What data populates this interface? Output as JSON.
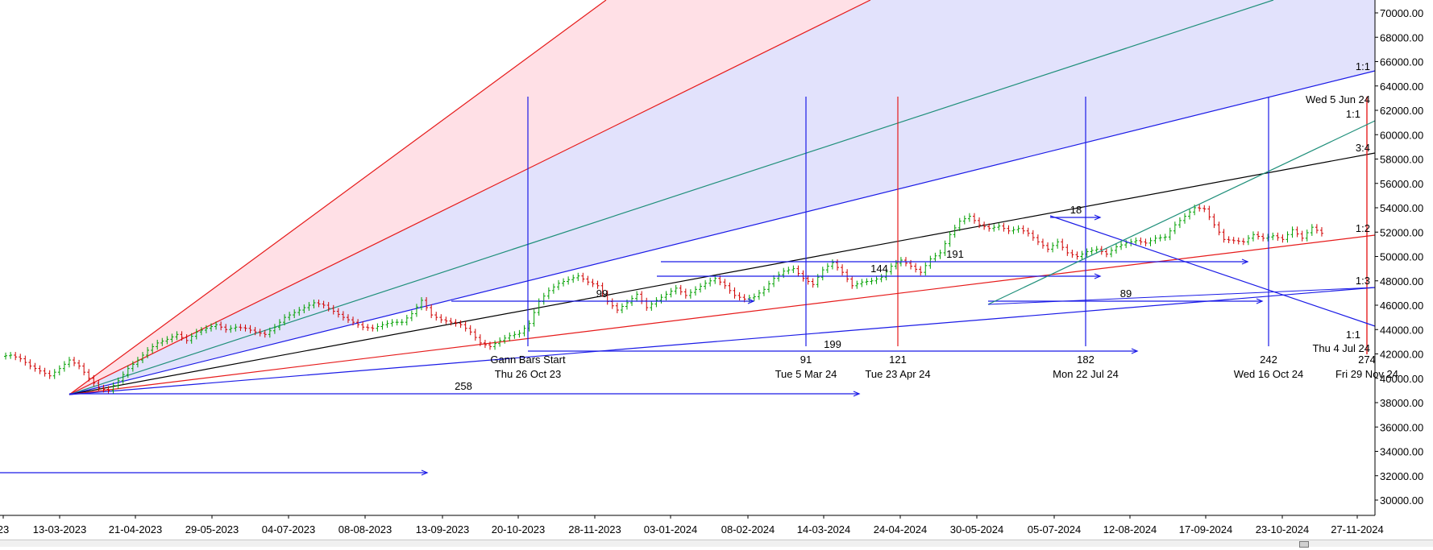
{
  "chart_data": {
    "type": "candlestick",
    "title": "",
    "xlabel": "",
    "ylabel": "",
    "ylim": [
      28500,
      71500
    ],
    "y_ticks": [
      "30000.00",
      "32000.00",
      "34000.00",
      "36000.00",
      "38000.00",
      "40000.00",
      "42000.00",
      "44000.00",
      "46000.00",
      "48000.00",
      "50000.00",
      "52000.00",
      "54000.00",
      "56000.00",
      "58000.00",
      "60000.00",
      "62000.00",
      "64000.00",
      "66000.00",
      "68000.00",
      "70000.00"
    ],
    "x_ticks": [
      "23",
      "13-03-2023",
      "21-04-2023",
      "29-05-2023",
      "04-07-2023",
      "08-08-2023",
      "13-09-2023",
      "20-10-2023",
      "28-11-2023",
      "03-01-2024",
      "08-02-2024",
      "14-03-2024",
      "24-04-2024",
      "30-05-2024",
      "05-07-2024",
      "12-08-2024",
      "17-09-2024",
      "23-10-2024",
      "27-11-2024"
    ],
    "price_path": [
      [
        0,
        41800
      ],
      [
        1,
        41900
      ],
      [
        2,
        41600
      ],
      [
        3,
        41000
      ],
      [
        4,
        40600
      ],
      [
        5,
        40200
      ],
      [
        6,
        40800
      ],
      [
        7,
        41500
      ],
      [
        8,
        41000
      ],
      [
        9,
        40000
      ],
      [
        10,
        39200
      ],
      [
        11,
        39000
      ],
      [
        12,
        39800
      ],
      [
        13,
        40800
      ],
      [
        14,
        41500
      ],
      [
        15,
        42300
      ],
      [
        16,
        42900
      ],
      [
        17,
        43200
      ],
      [
        18,
        43600
      ],
      [
        19,
        43100
      ],
      [
        20,
        43800
      ],
      [
        21,
        44100
      ],
      [
        22,
        44400
      ],
      [
        23,
        44000
      ],
      [
        24,
        44200
      ],
      [
        25,
        44100
      ],
      [
        26,
        43800
      ],
      [
        27,
        43600
      ],
      [
        28,
        44200
      ],
      [
        29,
        45000
      ],
      [
        30,
        45400
      ],
      [
        31,
        45800
      ],
      [
        32,
        46200
      ],
      [
        33,
        46000
      ],
      [
        34,
        45500
      ],
      [
        35,
        45000
      ],
      [
        36,
        44600
      ],
      [
        37,
        44200
      ],
      [
        38,
        44100
      ],
      [
        39,
        44400
      ],
      [
        40,
        44600
      ],
      [
        41,
        44600
      ],
      [
        42,
        45300
      ],
      [
        43,
        46400
      ],
      [
        44,
        45200
      ],
      [
        45,
        44800
      ],
      [
        46,
        44600
      ],
      [
        47,
        44400
      ],
      [
        48,
        43800
      ],
      [
        49,
        42900
      ],
      [
        50,
        42600
      ],
      [
        51,
        43100
      ],
      [
        52,
        43500
      ],
      [
        53,
        43700
      ],
      [
        54,
        44500
      ],
      [
        55,
        46300
      ],
      [
        56,
        47200
      ],
      [
        57,
        47800
      ],
      [
        58,
        48100
      ],
      [
        59,
        48400
      ],
      [
        60,
        47900
      ],
      [
        61,
        47600
      ],
      [
        62,
        46300
      ],
      [
        63,
        45600
      ],
      [
        64,
        46200
      ],
      [
        65,
        46900
      ],
      [
        66,
        45800
      ],
      [
        67,
        46400
      ],
      [
        68,
        46900
      ],
      [
        69,
        47400
      ],
      [
        70,
        46800
      ],
      [
        71,
        47300
      ],
      [
        72,
        47800
      ],
      [
        73,
        48200
      ],
      [
        74,
        47600
      ],
      [
        75,
        46800
      ],
      [
        76,
        46500
      ],
      [
        77,
        46700
      ],
      [
        78,
        47300
      ],
      [
        79,
        48200
      ],
      [
        80,
        48800
      ],
      [
        81,
        49000
      ],
      [
        82,
        48200
      ],
      [
        83,
        47700
      ],
      [
        84,
        48900
      ],
      [
        85,
        49500
      ],
      [
        86,
        48700
      ],
      [
        87,
        47600
      ],
      [
        88,
        47900
      ],
      [
        89,
        48000
      ],
      [
        90,
        48300
      ],
      [
        91,
        49200
      ],
      [
        92,
        49700
      ],
      [
        93,
        49200
      ],
      [
        94,
        48700
      ],
      [
        95,
        49800
      ],
      [
        96,
        50300
      ],
      [
        97,
        51800
      ],
      [
        98,
        52900
      ],
      [
        99,
        53300
      ],
      [
        100,
        52600
      ],
      [
        101,
        52300
      ],
      [
        102,
        52500
      ],
      [
        103,
        52100
      ],
      [
        104,
        52300
      ],
      [
        105,
        51900
      ],
      [
        106,
        51200
      ],
      [
        107,
        50600
      ],
      [
        108,
        51200
      ],
      [
        109,
        50300
      ],
      [
        110,
        50000
      ],
      [
        111,
        50400
      ],
      [
        112,
        50600
      ],
      [
        113,
        50200
      ],
      [
        114,
        50800
      ],
      [
        115,
        51100
      ],
      [
        116,
        51300
      ],
      [
        117,
        51100
      ],
      [
        118,
        51500
      ],
      [
        119,
        51600
      ],
      [
        120,
        52600
      ],
      [
        121,
        53300
      ],
      [
        122,
        54000
      ],
      [
        123,
        53900
      ],
      [
        124,
        52600
      ],
      [
        125,
        51400
      ],
      [
        126,
        51300
      ],
      [
        127,
        51200
      ],
      [
        128,
        51800
      ],
      [
        129,
        51500
      ],
      [
        130,
        51700
      ],
      [
        131,
        51400
      ],
      [
        132,
        52200
      ],
      [
        133,
        51500
      ],
      [
        134,
        52400
      ],
      [
        135,
        51900
      ]
    ],
    "y_right_labels": [
      "1:1",
      "1:1",
      "3:4",
      "1:2",
      "1:3",
      "1:1"
    ],
    "date_labels": [
      {
        "num": "",
        "name": "Gann Bars Start",
        "date": "Thu 26 Oct 23"
      },
      {
        "num": "91",
        "date": "Tue 5 Mar 24"
      },
      {
        "num": "121",
        "date": "Tue 23 Apr 24"
      },
      {
        "num": "182",
        "date": "Mon 22 Jul 24"
      },
      {
        "num": "242",
        "date": "Wed 16 Oct 24"
      },
      {
        "num": "274",
        "date": "Fri 29 Nov 24"
      }
    ],
    "count_labels": [
      "258",
      "199",
      "99",
      "144",
      "191",
      "18",
      "89"
    ],
    "annotations": [
      "Wed 5 Jun 24",
      "Thu 4 Jul 24"
    ]
  },
  "colors": {
    "up": "#00a000",
    "down": "#d00000",
    "fan_red_fill": "#ffe0e6",
    "fan_blue_fill": "#e2e2fc",
    "blue_line": "#1a1ae6",
    "red_line": "#e61a1a",
    "teal_line": "#1f8f7a",
    "axis": "#000000"
  }
}
